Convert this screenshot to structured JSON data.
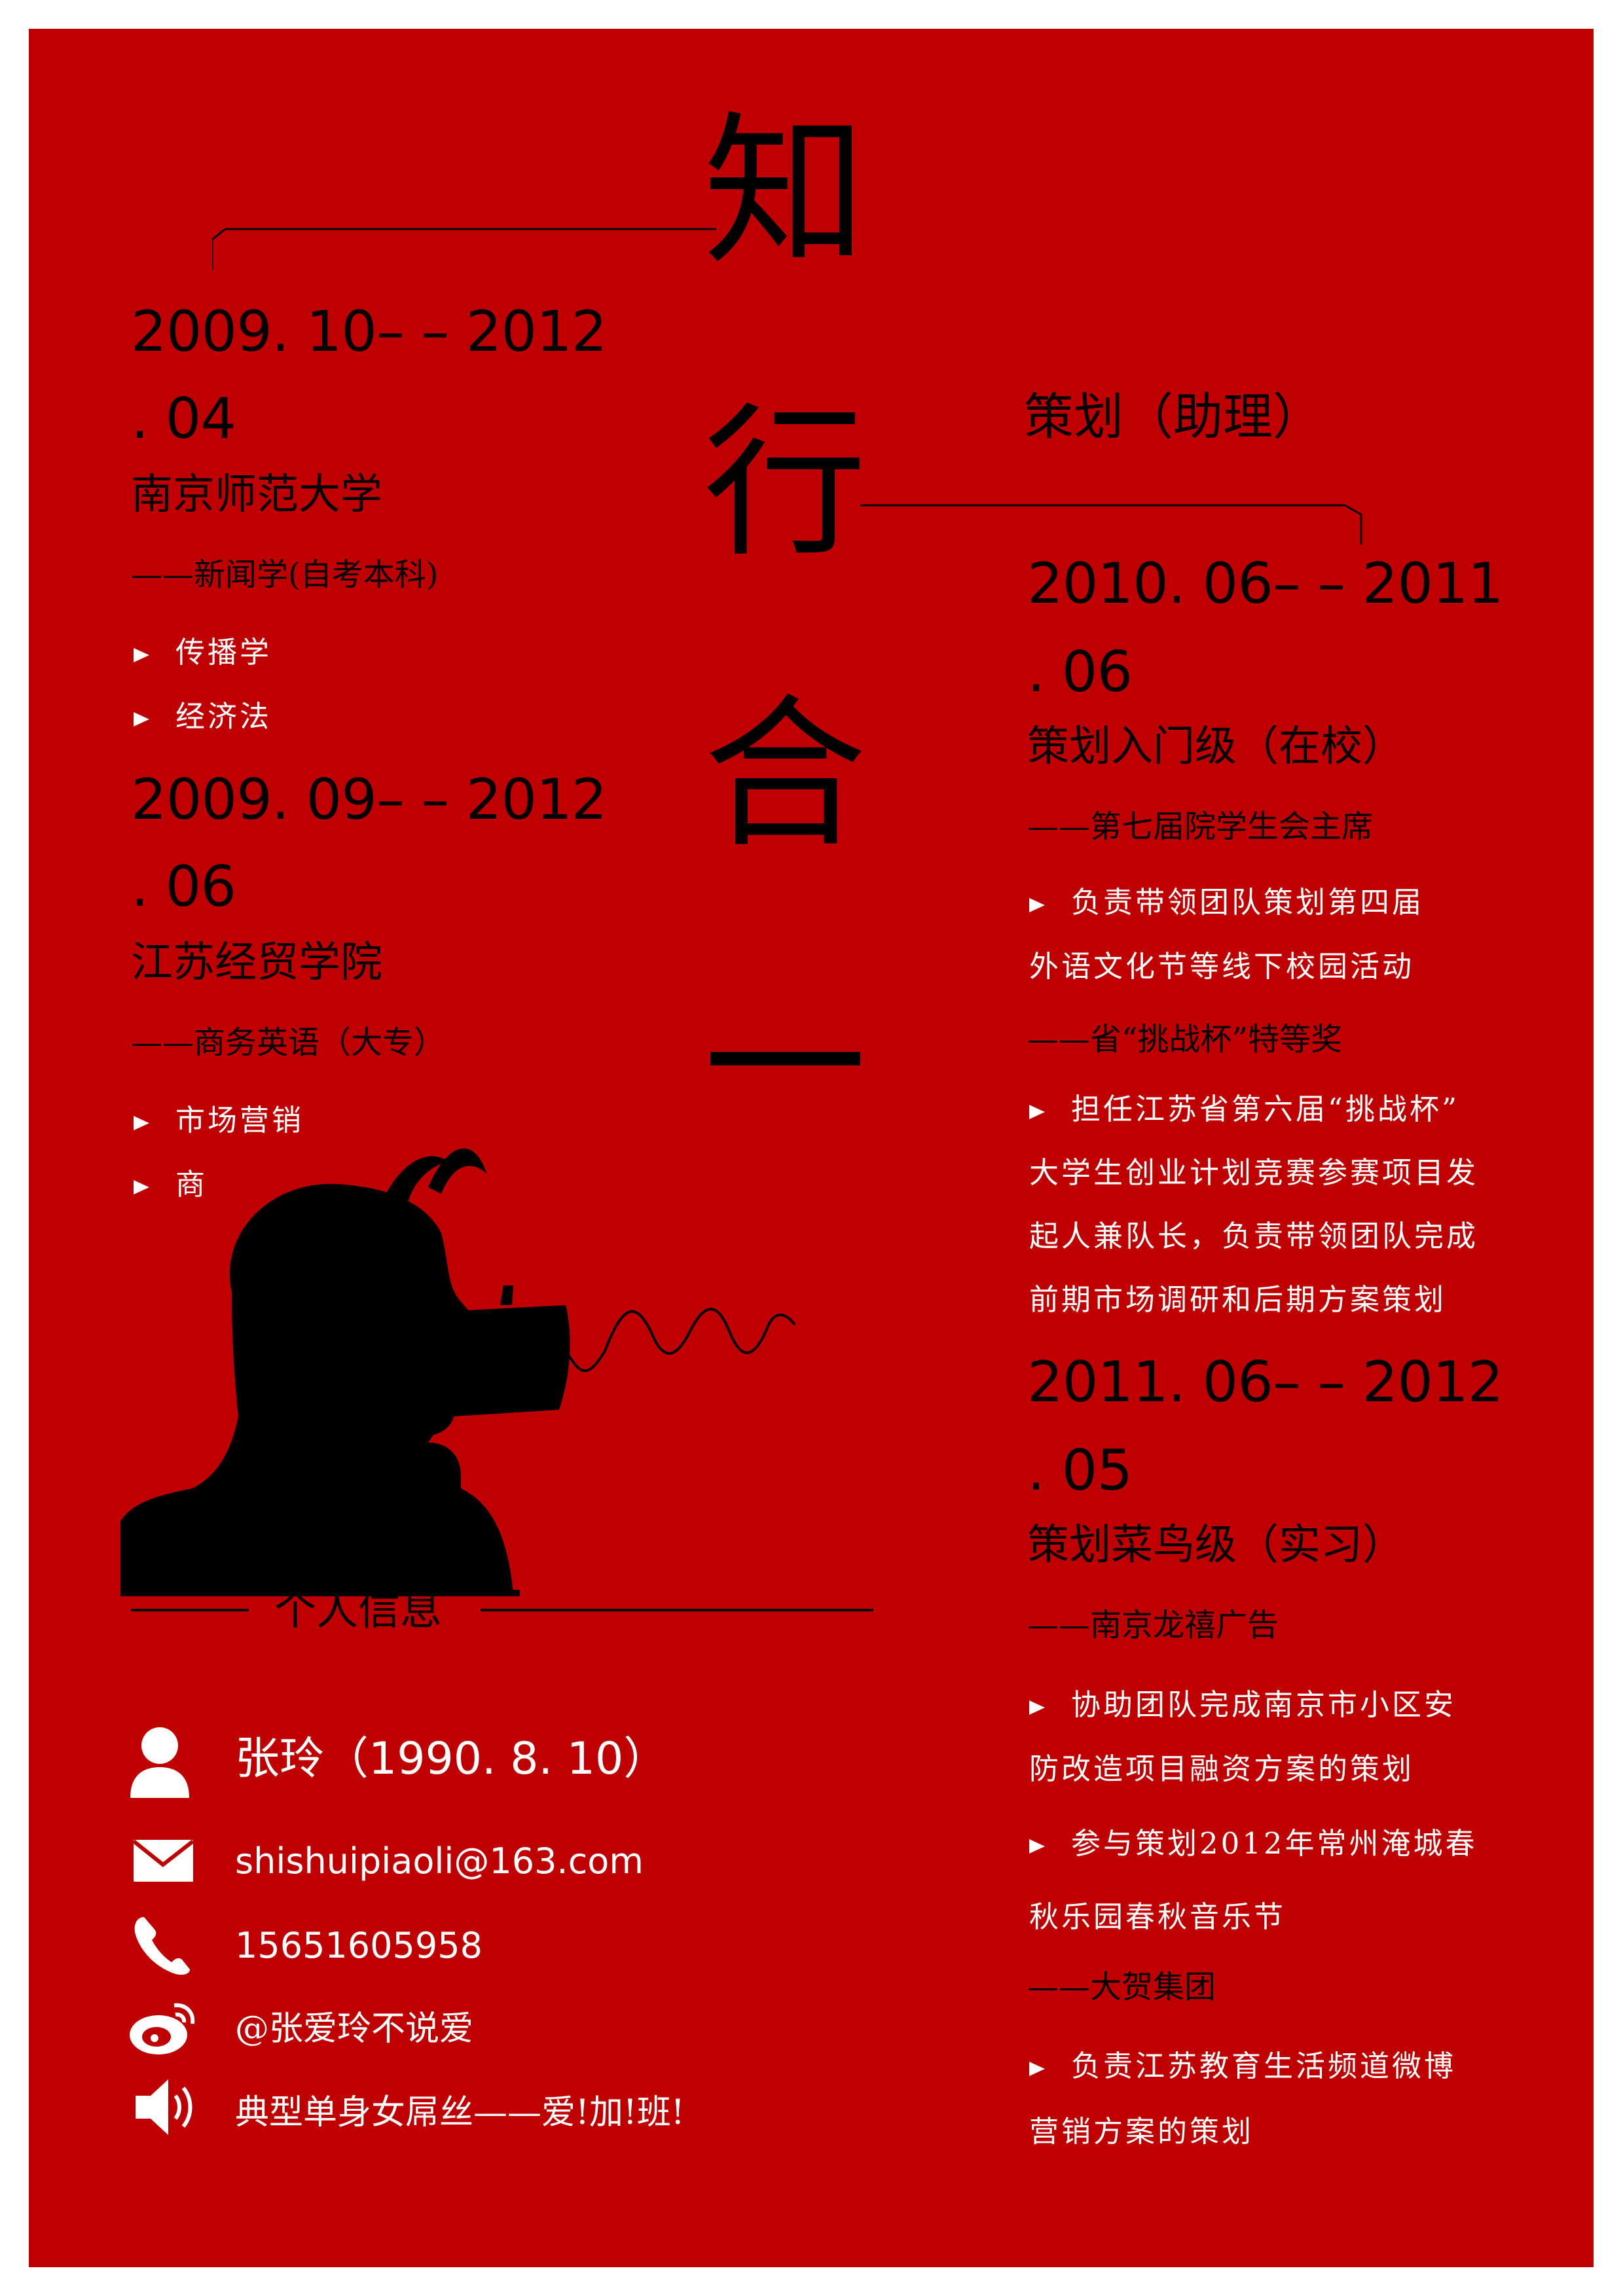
{
  "title_chars": [
    "知",
    "行",
    "合",
    "一"
  ],
  "left": {
    "edu1": {
      "date_line1": "2009. 10– – 2012",
      "date_line2": ". 04",
      "school": "南京师范大学",
      "major": "——新闻学(自考本科)",
      "courses": [
        "传播学",
        "经济法"
      ]
    },
    "edu2": {
      "date_line1": "2009. 09– – 2012",
      "date_line2": ". 06",
      "school": "江苏经贸学院",
      "major": "——商务英语（大专）",
      "courses": [
        "市场营销",
        "商"
      ]
    }
  },
  "right": {
    "section_title": "策划（助理）",
    "job1": {
      "date_line1": "2010. 06– – 2011",
      "date_line2": ". 06",
      "level": "策划入门级（在校）",
      "role1": "——第七届院学生会主席",
      "bullet1": [
        "负责带领团队策划第四届",
        "外语文化节等线下校园活动"
      ],
      "role2": "——省“挑战杯”特等奖",
      "bullet2": [
        "担任江苏省第六届“挑战杯”",
        "大学生创业计划竞赛参赛项目发",
        "起人兼队长，负责带领团队完成",
        "前期市场调研和后期方案策划"
      ]
    },
    "job2": {
      "date_line1": "2011. 06– – 2012",
      "date_line2": ". 05",
      "level": "策划菜鸟级（实习）",
      "company1": "——南京龙禧广告",
      "bullet1": [
        "协助团队完成南京市小区安",
        "防改造项目融资方案的策划"
      ],
      "bullet2": [
        "参与策划2012年常州淹城春",
        "秋乐园春秋音乐节"
      ],
      "company2": "——大贺集团",
      "bullet3": [
        "负责江苏教育生活频道微博",
        "营销方案的策划"
      ]
    }
  },
  "personal": {
    "heading": "个人信息",
    "name": "张玲（1990. 8. 10）",
    "email": "shishuipiaoli@163.com",
    "phone": "15651605958",
    "weibo": "@张爱玲不说爱",
    "motto": "典型单身女屌丝——爱!加!班!"
  },
  "icons": [
    "person-icon",
    "mail-icon",
    "phone-icon",
    "weibo-icon",
    "speaker-icon"
  ],
  "colors": {
    "background": "#c00000",
    "page": "#ffffff",
    "text_dark": "#000000",
    "text_light": "#ffffff"
  }
}
